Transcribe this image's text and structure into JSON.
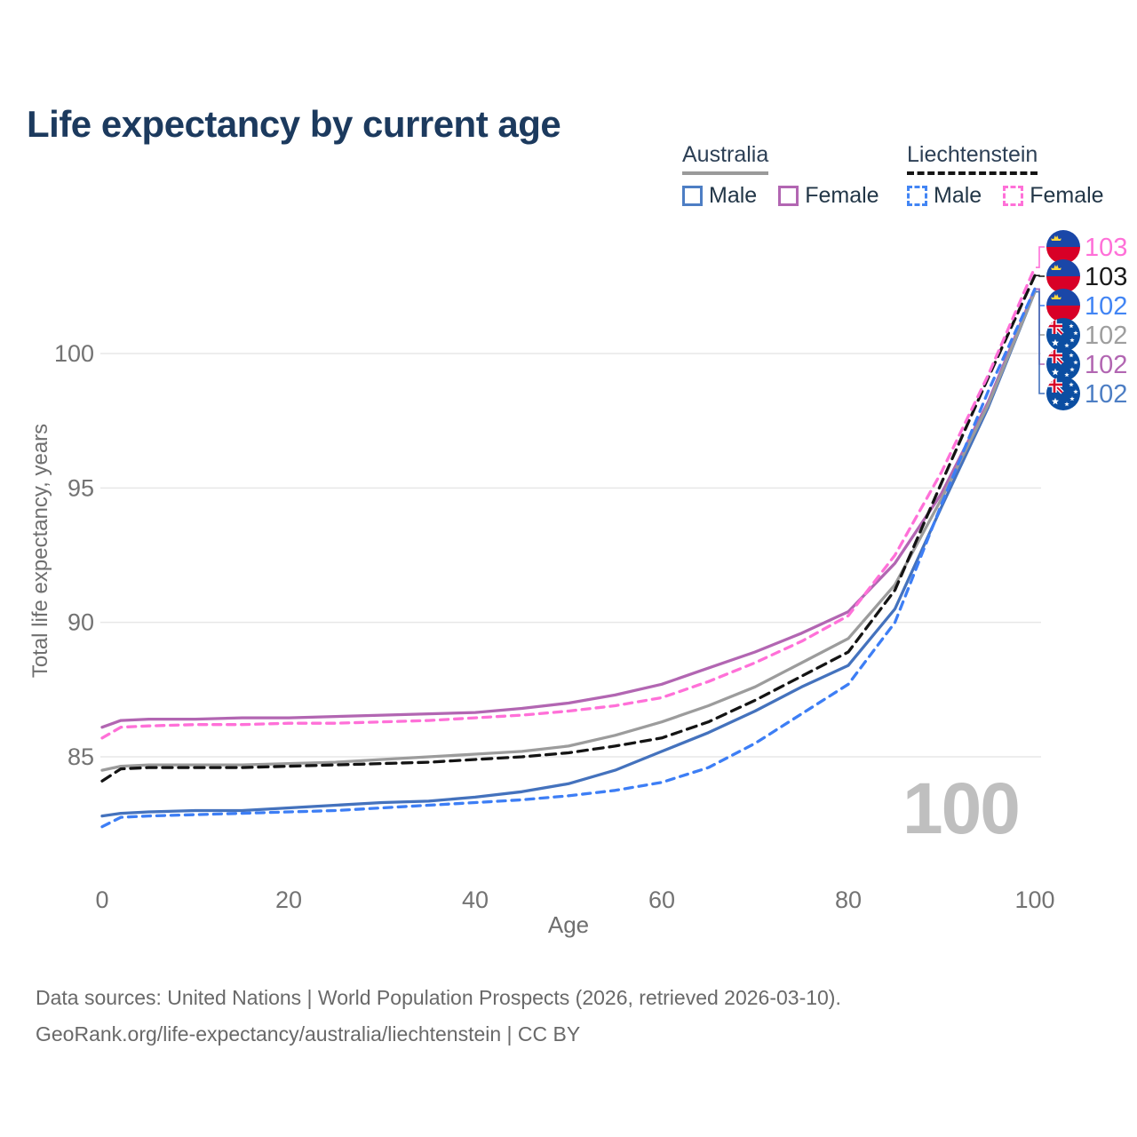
{
  "title": "Life expectancy by current age",
  "legend": {
    "groups": [
      {
        "country": "Australia",
        "line_style": "solid",
        "underline_color": "#9a9a9a",
        "items": [
          {
            "label": "Male",
            "color": "#4d7ec4",
            "dash": false
          },
          {
            "label": "Female",
            "color": "#b266b2",
            "dash": false
          }
        ]
      },
      {
        "country": "Liechtenstein",
        "line_style": "dashed",
        "underline_color": "#141414",
        "items": [
          {
            "label": "Male",
            "color": "#4285f4",
            "dash": true
          },
          {
            "label": "Female",
            "color": "#ff70d8",
            "dash": true
          }
        ]
      }
    ]
  },
  "chart_data": {
    "type": "line",
    "title": "Life expectancy by current age",
    "xlabel": "Age",
    "ylabel": "Total life expectancy, years",
    "x_ticks": [
      0,
      20,
      40,
      60,
      80,
      100
    ],
    "y_ticks": [
      85,
      90,
      95,
      100
    ],
    "xlim": [
      0,
      100
    ],
    "ylim": [
      82,
      104
    ],
    "grid": "horizontal",
    "legend_position": "top-right",
    "watermark": "100",
    "ages": [
      0,
      2,
      5,
      10,
      15,
      20,
      25,
      30,
      35,
      40,
      45,
      50,
      55,
      60,
      65,
      70,
      75,
      80,
      85,
      90,
      95,
      100
    ],
    "series": [
      {
        "key": "aus_m",
        "name": "Australia Male",
        "country": "australia",
        "color": "#4472bd",
        "dash": false,
        "values": [
          82.8,
          82.9,
          82.95,
          83.0,
          83.0,
          83.1,
          83.2,
          83.3,
          83.35,
          83.5,
          83.7,
          84.0,
          84.5,
          85.2,
          85.9,
          86.7,
          87.6,
          88.4,
          90.5,
          94.3,
          98.0,
          102.3
        ]
      },
      {
        "key": "aus_f",
        "name": "Australia Female",
        "country": "australia",
        "color": "#b266b2",
        "dash": false,
        "values": [
          86.1,
          86.35,
          86.4,
          86.4,
          86.45,
          86.45,
          86.5,
          86.55,
          86.6,
          86.65,
          86.8,
          87.0,
          87.3,
          87.7,
          88.3,
          88.9,
          89.6,
          90.4,
          92.2,
          94.8,
          98.2,
          102.4
        ]
      },
      {
        "key": "aus_all",
        "name": "Australia Total",
        "country": "australia",
        "color": "#9c9c9c",
        "dash": false,
        "values": [
          84.5,
          84.65,
          84.7,
          84.7,
          84.7,
          84.75,
          84.8,
          84.9,
          85.0,
          85.1,
          85.2,
          85.4,
          85.8,
          86.3,
          86.9,
          87.6,
          88.5,
          89.4,
          91.4,
          94.6,
          98.1,
          102.3
        ]
      },
      {
        "key": "lie_all",
        "name": "Liechtenstein Total",
        "country": "liechtenstein",
        "color": "#141414",
        "dash": true,
        "values": [
          84.1,
          84.55,
          84.6,
          84.6,
          84.6,
          84.65,
          84.7,
          84.75,
          84.8,
          84.9,
          85.0,
          85.15,
          85.4,
          85.7,
          86.3,
          87.1,
          88.0,
          88.9,
          91.2,
          95.2,
          99.1,
          102.9
        ]
      },
      {
        "key": "lie_m",
        "name": "Liechtenstein Male",
        "country": "liechtenstein",
        "color": "#3d7ef5",
        "dash": true,
        "values": [
          82.4,
          82.75,
          82.8,
          82.85,
          82.9,
          82.95,
          83.0,
          83.1,
          83.2,
          83.3,
          83.4,
          83.55,
          83.75,
          84.05,
          84.6,
          85.5,
          86.6,
          87.7,
          90.0,
          94.4,
          98.6,
          102.4
        ]
      },
      {
        "key": "lie_f",
        "name": "Liechtenstein Female",
        "country": "liechtenstein",
        "color": "#ff70d8",
        "dash": true,
        "values": [
          85.7,
          86.1,
          86.15,
          86.2,
          86.2,
          86.25,
          86.25,
          86.3,
          86.35,
          86.45,
          86.55,
          86.7,
          86.9,
          87.2,
          87.8,
          88.5,
          89.3,
          90.25,
          92.5,
          95.6,
          99.2,
          103.2
        ]
      }
    ],
    "end_labels": [
      {
        "flag": "liechtenstein",
        "series": "lie_f",
        "value": "103",
        "color": "#ff70d8"
      },
      {
        "flag": "liechtenstein",
        "series": "lie_all",
        "value": "103",
        "color": "#1a1a1a"
      },
      {
        "flag": "liechtenstein",
        "series": "lie_m",
        "value": "102",
        "color": "#4285f4"
      },
      {
        "flag": "australia",
        "series": "aus_all",
        "value": "102",
        "color": "#9e9e9e"
      },
      {
        "flag": "australia",
        "series": "aus_f",
        "value": "102",
        "color": "#b266b2"
      },
      {
        "flag": "australia",
        "series": "aus_m",
        "value": "102",
        "color": "#4d7ec4"
      }
    ],
    "flag_colors": {
      "liechtenstein_blue": "#1a47a8",
      "liechtenstein_red": "#d80027",
      "liechtenstein_crown": "#ffd83d",
      "australia_blue": "#0b4ea2",
      "australia_red": "#d80027",
      "australia_white": "#ffffff"
    }
  },
  "footer": {
    "line1": "Data sources: United Nations | World Population Prospects (2026, retrieved 2026-03-10).",
    "line2": "GeoRank.org/life-expectancy/australia/liechtenstein | CC BY"
  }
}
